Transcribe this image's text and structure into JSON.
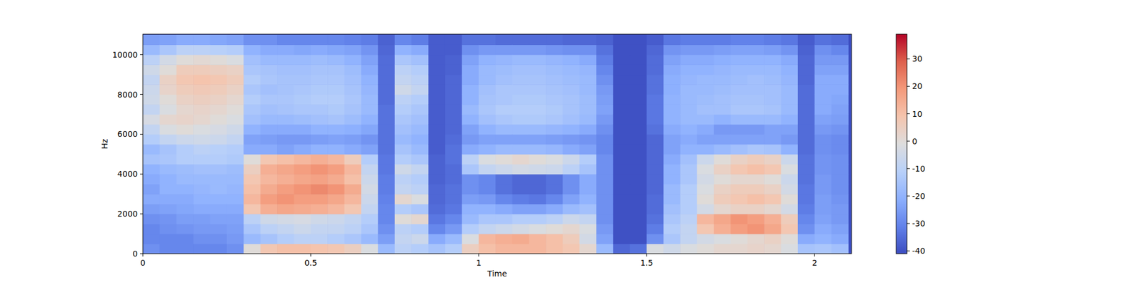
{
  "chart_data": {
    "type": "heatmap",
    "xlabel": "Time",
    "ylabel": "Hz",
    "xlim": [
      0,
      2.11
    ],
    "ylim": [
      0,
      11025
    ],
    "xticks": [
      0,
      0.5,
      1,
      1.5,
      2
    ],
    "yticks": [
      0,
      2000,
      4000,
      6000,
      8000,
      10000
    ],
    "color_range": [
      -41,
      39
    ],
    "color_ticks": [
      -40,
      -30,
      -20,
      -10,
      0,
      10,
      20,
      30
    ],
    "x": [
      0.025,
      0.075,
      0.125,
      0.175,
      0.225,
      0.275,
      0.325,
      0.375,
      0.425,
      0.475,
      0.525,
      0.575,
      0.625,
      0.675,
      0.725,
      0.775,
      0.825,
      0.875,
      0.925,
      0.975,
      1.025,
      1.075,
      1.125,
      1.175,
      1.225,
      1.275,
      1.325,
      1.375,
      1.425,
      1.475,
      1.525,
      1.575,
      1.625,
      1.675,
      1.725,
      1.775,
      1.825,
      1.875,
      1.925,
      1.975,
      2.025,
      2.075
    ],
    "y": [
      250,
      750,
      1250,
      1750,
      2250,
      2750,
      3250,
      3750,
      4250,
      4750,
      5250,
      5750,
      6250,
      6750,
      7250,
      7750,
      8250,
      8750,
      9250,
      9750,
      10250,
      10750
    ],
    "values": [
      [
        -28,
        -30,
        -30,
        -28,
        -25,
        -22,
        -24,
        -22,
        -20,
        -15,
        -18,
        -12,
        -8,
        -3,
        -8,
        -5,
        -6,
        -8,
        -5,
        -10,
        -18,
        -25
      ],
      [
        -30,
        -30,
        -28,
        -27,
        -24,
        -22,
        -20,
        -20,
        -18,
        -14,
        -15,
        -8,
        -2,
        2,
        -2,
        0,
        3,
        4,
        0,
        -4,
        -14,
        -24
      ],
      [
        -30,
        -30,
        -27,
        -25,
        -23,
        -22,
        -20,
        -18,
        -17,
        -12,
        -12,
        -6,
        0,
        3,
        2,
        4,
        6,
        8,
        6,
        0,
        -10,
        -22
      ],
      [
        -30,
        -28,
        -26,
        -25,
        -22,
        -20,
        -19,
        -18,
        -16,
        -12,
        -10,
        -5,
        -2,
        2,
        3,
        5,
        7,
        9,
        6,
        1,
        -10,
        -22
      ],
      [
        -30,
        -28,
        -26,
        -24,
        -22,
        -20,
        -18,
        -18,
        -16,
        -12,
        -11,
        -6,
        -3,
        0,
        2,
        4,
        6,
        8,
        5,
        0,
        -11,
        -23
      ],
      [
        -28,
        -26,
        -25,
        -24,
        -22,
        -20,
        -19,
        -18,
        -17,
        -13,
        -12,
        -8,
        -5,
        -2,
        0,
        2,
        4,
        6,
        4,
        -2,
        -12,
        -24
      ],
      [
        0,
        -18,
        -14,
        -10,
        8,
        12,
        10,
        8,
        5,
        0,
        -22,
        -24,
        -20,
        -16,
        -14,
        -12,
        -14,
        -12,
        -14,
        -16,
        -20,
        -28
      ],
      [
        8,
        -15,
        -10,
        -5,
        14,
        18,
        15,
        12,
        14,
        8,
        -22,
        -25,
        -22,
        -18,
        -16,
        -14,
        -16,
        -14,
        -15,
        -18,
        -22,
        -28
      ],
      [
        10,
        -12,
        -8,
        -4,
        16,
        20,
        18,
        14,
        16,
        10,
        -24,
        -26,
        -22,
        -18,
        -15,
        -14,
        -15,
        -15,
        -16,
        -18,
        -22,
        -30
      ],
      [
        10,
        -10,
        -6,
        -3,
        15,
        18,
        20,
        16,
        18,
        12,
        -22,
        -26,
        -22,
        -17,
        -14,
        -13,
        -14,
        -15,
        -16,
        -18,
        -23,
        -30
      ],
      [
        9,
        -10,
        -8,
        -5,
        14,
        18,
        22,
        17,
        20,
        14,
        -20,
        -25,
        -20,
        -16,
        -14,
        -12,
        -13,
        -14,
        -15,
        -17,
        -22,
        -30
      ],
      [
        8,
        -12,
        -8,
        -6,
        12,
        16,
        20,
        15,
        18,
        12,
        -20,
        -24,
        -20,
        -15,
        -13,
        -12,
        -13,
        -14,
        -15,
        -18,
        -23,
        -30
      ],
      [
        5,
        -14,
        -10,
        -8,
        8,
        12,
        15,
        10,
        12,
        6,
        -22,
        -25,
        -21,
        -17,
        -15,
        -14,
        -15,
        -16,
        -17,
        -20,
        -24,
        -31
      ],
      [
        -2,
        -18,
        -14,
        -12,
        -8,
        -6,
        -4,
        -6,
        -8,
        -12,
        -24,
        -27,
        -23,
        -20,
        -18,
        -18,
        -19,
        -20,
        -22,
        -24,
        -27,
        -32
      ],
      [
        -18,
        -25,
        -28,
        -30,
        -30,
        -31,
        -32,
        -32,
        -33,
        -33,
        -34,
        -34,
        -34,
        -34,
        -34,
        -35,
        -35,
        -35,
        -35,
        -35,
        -36,
        -37
      ],
      [
        -10,
        -8,
        -10,
        0,
        -12,
        2,
        -8,
        -10,
        -5,
        -12,
        -15,
        -18,
        -16,
        -14,
        -12,
        -10,
        -5,
        -8,
        -10,
        -14,
        -20,
        -30
      ],
      [
        -12,
        -6,
        -12,
        2,
        -14,
        -2,
        -10,
        -12,
        -8,
        -14,
        -18,
        -20,
        -18,
        -16,
        -14,
        -12,
        -8,
        -10,
        -12,
        -16,
        -22,
        -32
      ],
      [
        -15,
        -22,
        -30,
        -33,
        -35,
        -36,
        -36,
        -37,
        -37,
        -37,
        -38,
        -38,
        -38,
        -38,
        -38,
        -38,
        -38,
        -38,
        -38,
        -38,
        -38,
        -38
      ],
      [
        -12,
        -18,
        -26,
        -30,
        -33,
        -34,
        -34,
        -35,
        -35,
        -34,
        -34,
        -35,
        -36,
        -36,
        -36,
        -36,
        -36,
        -36,
        -37,
        -37,
        -38,
        -38
      ],
      [
        5,
        -2,
        -12,
        -18,
        -20,
        -25,
        -28,
        -28,
        -14,
        -10,
        -22,
        -26,
        -24,
        -20,
        -18,
        -20,
        -20,
        -22,
        -22,
        -24,
        -28,
        -34
      ],
      [
        10,
        12,
        -8,
        -14,
        -20,
        -26,
        -30,
        -30,
        -8,
        -2,
        -20,
        -24,
        -20,
        -16,
        -14,
        -15,
        -16,
        -18,
        -18,
        -20,
        -26,
        -34
      ],
      [
        12,
        14,
        -6,
        -14,
        -22,
        -30,
        -34,
        -34,
        -6,
        0,
        -18,
        -24,
        -18,
        -14,
        -12,
        -14,
        -14,
        -16,
        -17,
        -19,
        -26,
        -35
      ],
      [
        12,
        15,
        -4,
        -12,
        -24,
        -32,
        -36,
        -36,
        -4,
        2,
        -18,
        -24,
        -18,
        -13,
        -12,
        -13,
        -14,
        -15,
        -16,
        -18,
        -26,
        -35
      ],
      [
        12,
        12,
        -2,
        -12,
        -24,
        -33,
        -36,
        -36,
        -5,
        0,
        -18,
        -24,
        -18,
        -13,
        -12,
        -13,
        -14,
        -15,
        -16,
        -18,
        -26,
        -35
      ],
      [
        10,
        10,
        0,
        -10,
        -22,
        -30,
        -34,
        -34,
        -6,
        -2,
        -19,
        -25,
        -19,
        -14,
        -13,
        -14,
        -15,
        -16,
        -17,
        -19,
        -27,
        -35
      ],
      [
        8,
        6,
        2,
        -6,
        -18,
        -24,
        -28,
        -28,
        -10,
        -6,
        -22,
        -26,
        -20,
        -16,
        -15,
        -15,
        -16,
        -17,
        -18,
        -20,
        -28,
        -36
      ],
      [
        2,
        -4,
        -2,
        -8,
        -16,
        -20,
        -22,
        -22,
        -15,
        -12,
        -24,
        -27,
        -22,
        -18,
        -17,
        -17,
        -18,
        -18,
        -19,
        -22,
        -28,
        -36
      ],
      [
        -18,
        -24,
        -26,
        -28,
        -28,
        -28,
        -28,
        -28,
        -28,
        -28,
        -30,
        -30,
        -28,
        -26,
        -24,
        -25,
        -26,
        -28,
        -30,
        -32,
        -34,
        -37
      ],
      [
        -36,
        -40,
        -40,
        -40,
        -40,
        -40,
        -40,
        -40,
        -40,
        -40,
        -40,
        -40,
        -40,
        -40,
        -40,
        -40,
        -40,
        -40,
        -40,
        -40,
        -40,
        -40
      ],
      [
        -34,
        -40,
        -40,
        -40,
        -40,
        -40,
        -40,
        -40,
        -40,
        -40,
        -40,
        -40,
        -40,
        -40,
        -40,
        -40,
        -40,
        -40,
        -40,
        -40,
        -40,
        -40
      ],
      [
        -2,
        -28,
        -32,
        -34,
        -35,
        -35,
        -36,
        -36,
        -36,
        -36,
        -36,
        -36,
        -34,
        -33,
        -33,
        -33,
        -34,
        -34,
        -35,
        -35,
        -36,
        -38
      ],
      [
        -5,
        -14,
        -12,
        -14,
        -16,
        -18,
        -18,
        -20,
        -20,
        -22,
        -24,
        -24,
        -22,
        -20,
        -20,
        -20,
        -21,
        -21,
        -22,
        -24,
        -27,
        -33
      ],
      [
        -2,
        -8,
        -8,
        -10,
        -12,
        -12,
        -12,
        -14,
        -14,
        -16,
        -20,
        -22,
        -20,
        -18,
        -18,
        -18,
        -18,
        -19,
        -20,
        -22,
        -26,
        -32
      ],
      [
        0,
        -4,
        8,
        12,
        -4,
        0,
        -2,
        -4,
        -2,
        -6,
        -20,
        -24,
        -22,
        -18,
        -16,
        -17,
        -18,
        -18,
        -20,
        -22,
        -26,
        -32
      ],
      [
        2,
        -2,
        14,
        16,
        2,
        6,
        4,
        0,
        4,
        0,
        -18,
        -24,
        -26,
        -20,
        -16,
        -16,
        -17,
        -18,
        -19,
        -21,
        -25,
        -32
      ],
      [
        2,
        0,
        18,
        20,
        4,
        8,
        6,
        2,
        8,
        4,
        -16,
        -24,
        -26,
        -18,
        -14,
        -15,
        -16,
        -17,
        -18,
        -20,
        -24,
        -31
      ],
      [
        3,
        2,
        20,
        18,
        4,
        10,
        6,
        2,
        10,
        6,
        -14,
        -24,
        -26,
        -18,
        -14,
        -15,
        -16,
        -16,
        -18,
        -20,
        -24,
        -31
      ],
      [
        2,
        4,
        16,
        14,
        2,
        8,
        4,
        0,
        8,
        4,
        -15,
        -24,
        -24,
        -18,
        -15,
        -16,
        -16,
        -17,
        -18,
        -20,
        -25,
        -32
      ],
      [
        -2,
        0,
        8,
        6,
        -4,
        0,
        -4,
        -6,
        -2,
        -6,
        -20,
        -26,
        -24,
        -20,
        -18,
        -18,
        -18,
        -19,
        -20,
        -22,
        -27,
        -33
      ],
      [
        -15,
        -22,
        -28,
        -30,
        -32,
        -33,
        -33,
        -34,
        -34,
        -34,
        -35,
        -35,
        -35,
        -35,
        -35,
        -35,
        -35,
        -36,
        -36,
        -36,
        -37,
        -38
      ],
      [
        -14,
        -20,
        -22,
        -24,
        -25,
        -25,
        -26,
        -26,
        -27,
        -27,
        -28,
        -28,
        -26,
        -24,
        -22,
        -22,
        -22,
        -22,
        -24,
        -26,
        -28,
        -34
      ],
      [
        -16,
        -22,
        -24,
        -26,
        -26,
        -27,
        -28,
        -28,
        -28,
        -28,
        -29,
        -29,
        -27,
        -25,
        -24,
        -23,
        -22,
        -22,
        -24,
        -26,
        -30,
        -35
      ]
    ]
  }
}
